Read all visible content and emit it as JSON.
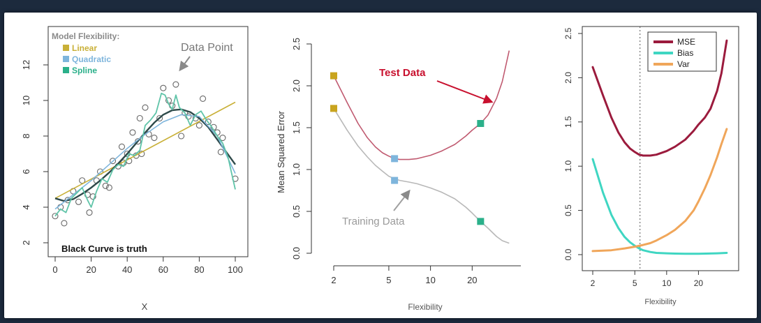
{
  "chart_data": [
    {
      "type": "scatter",
      "xlabel": "X",
      "ylabel": "",
      "xlim": [
        0,
        100
      ],
      "ylim": [
        2,
        12
      ],
      "x_ticks": [
        "0",
        "20",
        "40",
        "60",
        "80",
        "100"
      ],
      "y_ticks": [
        "2",
        "4",
        "6",
        "8",
        "10",
        "12"
      ],
      "legend_title": "Model Flexibility:",
      "legend": [
        {
          "name": "Linear",
          "color": "#c9b037"
        },
        {
          "name": "Quadratic",
          "color": "#7eb5dc"
        },
        {
          "name": "Spline",
          "color": "#2bb08a"
        }
      ],
      "annotations": {
        "data_point": "Data Point",
        "truth": "Black Curve is truth"
      },
      "points": [
        [
          0,
          3.5
        ],
        [
          3,
          4.0
        ],
        [
          5,
          3.1
        ],
        [
          7,
          4.4
        ],
        [
          10,
          4.9
        ],
        [
          13,
          4.3
        ],
        [
          15,
          5.5
        ],
        [
          18,
          4.7
        ],
        [
          19,
          3.7
        ],
        [
          21,
          4.6
        ],
        [
          23,
          5.5
        ],
        [
          25,
          6.0
        ],
        [
          28,
          5.2
        ],
        [
          30,
          5.1
        ],
        [
          32,
          6.6
        ],
        [
          35,
          6.3
        ],
        [
          37,
          7.4
        ],
        [
          38,
          6.5
        ],
        [
          40,
          7.0
        ],
        [
          41,
          6.6
        ],
        [
          43,
          8.2
        ],
        [
          45,
          6.9
        ],
        [
          46,
          7.7
        ],
        [
          47,
          9.0
        ],
        [
          48,
          7.0
        ],
        [
          50,
          9.6
        ],
        [
          52,
          8.1
        ],
        [
          55,
          7.9
        ],
        [
          58,
          9.0
        ],
        [
          60,
          10.7
        ],
        [
          63,
          10.0
        ],
        [
          65,
          9.7
        ],
        [
          67,
          10.9
        ],
        [
          70,
          8.0
        ],
        [
          72,
          9.3
        ],
        [
          74,
          9.1
        ],
        [
          78,
          9.0
        ],
        [
          80,
          8.6
        ],
        [
          82,
          10.1
        ],
        [
          85,
          8.8
        ],
        [
          88,
          8.5
        ],
        [
          90,
          8.2
        ],
        [
          92,
          7.1
        ],
        [
          93,
          7.9
        ],
        [
          100,
          5.6
        ]
      ],
      "series": [
        {
          "name": "Linear",
          "color": "#c9b037",
          "x": [
            0,
            100
          ],
          "y": [
            4.5,
            9.9
          ]
        },
        {
          "name": "truth",
          "color": "#2e4a4a",
          "x": [
            0,
            5,
            10,
            15,
            20,
            25,
            30,
            35,
            40,
            45,
            50,
            55,
            60,
            65,
            70,
            75,
            80,
            85,
            90,
            95,
            100
          ],
          "y": [
            4.5,
            4.35,
            4.45,
            4.75,
            5.1,
            5.5,
            5.95,
            6.45,
            7.0,
            7.6,
            8.2,
            8.75,
            9.2,
            9.45,
            9.5,
            9.35,
            9.0,
            8.5,
            7.8,
            7.1,
            6.4
          ]
        },
        {
          "name": "Quadratic",
          "color": "#7eb5dc",
          "x": [
            0,
            10,
            20,
            30,
            40,
            50,
            60,
            70,
            80,
            90,
            100
          ],
          "y": [
            3.9,
            4.7,
            5.5,
            6.4,
            7.3,
            8.1,
            8.8,
            9.2,
            9.1,
            8.0,
            5.9
          ]
        },
        {
          "name": "Spline",
          "color": "#5fc4a8",
          "x": [
            0,
            3,
            6,
            9,
            12,
            15,
            18,
            20,
            23,
            26,
            29,
            32,
            35,
            38,
            41,
            44,
            47,
            50,
            53,
            56,
            59,
            61,
            63,
            65,
            67,
            69,
            72,
            75,
            78,
            81,
            84,
            87,
            90,
            93,
            96,
            98,
            100
          ],
          "y": [
            3.5,
            3.9,
            3.7,
            4.5,
            4.8,
            5.1,
            4.4,
            4.0,
            4.9,
            5.6,
            5.4,
            6.1,
            6.4,
            6.3,
            7.0,
            6.9,
            7.2,
            8.6,
            8.9,
            9.3,
            10.4,
            10.3,
            9.8,
            9.5,
            10.3,
            9.6,
            9.3,
            8.6,
            9.2,
            9.4,
            8.9,
            8.5,
            8.0,
            7.6,
            6.8,
            5.9,
            5.0
          ]
        }
      ]
    },
    {
      "type": "line",
      "xlabel": "Flexibility",
      "ylabel": "Mean Squared Error",
      "xscale": "log",
      "xlim": [
        2,
        40
      ],
      "ylim": [
        0,
        2.5
      ],
      "x_ticks": [
        "2",
        "5",
        "10",
        "20"
      ],
      "y_ticks": [
        "0.0",
        "0.5",
        "1.0",
        "1.5",
        "2.0",
        "2.5"
      ],
      "annotations": {
        "test": "Test Data",
        "train": "Training Data"
      },
      "series": [
        {
          "name": "Test Data",
          "color": "#c05a70",
          "x": [
            2,
            2.5,
            3,
            3.5,
            4,
            4.5,
            5,
            5.5,
            6,
            7,
            8,
            10,
            12,
            15,
            18,
            20,
            23,
            26,
            30,
            33,
            37
          ],
          "y": [
            2.12,
            1.8,
            1.55,
            1.38,
            1.27,
            1.2,
            1.16,
            1.13,
            1.12,
            1.12,
            1.13,
            1.17,
            1.22,
            1.3,
            1.4,
            1.47,
            1.55,
            1.65,
            1.85,
            2.05,
            2.42
          ]
        },
        {
          "name": "Training Data",
          "color": "#b8b8b8",
          "x": [
            2,
            2.5,
            3,
            3.5,
            4,
            4.5,
            5,
            5.5,
            6,
            7,
            8,
            10,
            12,
            15,
            18,
            20,
            23,
            26,
            30,
            33,
            37
          ],
          "y": [
            1.73,
            1.47,
            1.28,
            1.15,
            1.05,
            0.98,
            0.92,
            0.89,
            0.87,
            0.85,
            0.83,
            0.78,
            0.73,
            0.65,
            0.55,
            0.48,
            0.38,
            0.3,
            0.2,
            0.15,
            0.12
          ]
        }
      ],
      "markers": [
        {
          "x": 2,
          "y": 2.12,
          "color": "#c9a41e"
        },
        {
          "x": 2,
          "y": 1.73,
          "color": "#c9a41e"
        },
        {
          "x": 5.5,
          "y": 1.13,
          "color": "#7eb5dc"
        },
        {
          "x": 5.5,
          "y": 0.87,
          "color": "#7eb5dc"
        },
        {
          "x": 23,
          "y": 1.55,
          "color": "#2bb08a"
        },
        {
          "x": 23,
          "y": 0.38,
          "color": "#2bb08a"
        }
      ]
    },
    {
      "type": "line",
      "xlabel": "Flexibility",
      "ylabel": "",
      "xscale": "log",
      "xlim": [
        2,
        40
      ],
      "ylim": [
        0,
        2.5
      ],
      "x_ticks": [
        "2",
        "5",
        "10",
        "20"
      ],
      "y_ticks": [
        "0.0",
        "0.5",
        "1.0",
        "1.5",
        "2.0",
        "2.5"
      ],
      "vline_x": 5.6,
      "legend_position": "top-right",
      "series": [
        {
          "name": "MSE",
          "color": "#9b1b3d",
          "x": [
            2,
            2.5,
            3,
            3.5,
            4,
            4.5,
            5,
            5.5,
            6,
            7,
            8,
            10,
            12,
            15,
            18,
            20,
            23,
            26,
            30,
            33,
            37
          ],
          "y": [
            2.12,
            1.8,
            1.55,
            1.38,
            1.27,
            1.2,
            1.16,
            1.13,
            1.12,
            1.12,
            1.13,
            1.17,
            1.22,
            1.3,
            1.4,
            1.47,
            1.55,
            1.65,
            1.85,
            2.05,
            2.42
          ]
        },
        {
          "name": "Bias",
          "color": "#3fd6c2",
          "x": [
            2,
            2.5,
            3,
            3.5,
            4,
            4.5,
            5,
            5.5,
            6,
            7,
            8,
            10,
            12,
            15,
            20,
            30,
            37
          ],
          "y": [
            1.08,
            0.7,
            0.45,
            0.3,
            0.2,
            0.14,
            0.1,
            0.07,
            0.05,
            0.03,
            0.02,
            0.015,
            0.012,
            0.01,
            0.01,
            0.015,
            0.02
          ]
        },
        {
          "name": "Var",
          "color": "#f0a65a",
          "x": [
            2,
            3,
            4,
            5,
            6,
            7,
            8,
            10,
            12,
            15,
            18,
            20,
            23,
            26,
            30,
            33,
            37
          ],
          "y": [
            0.04,
            0.05,
            0.07,
            0.09,
            0.11,
            0.13,
            0.16,
            0.22,
            0.28,
            0.38,
            0.5,
            0.6,
            0.75,
            0.9,
            1.1,
            1.25,
            1.42
          ]
        }
      ]
    }
  ]
}
